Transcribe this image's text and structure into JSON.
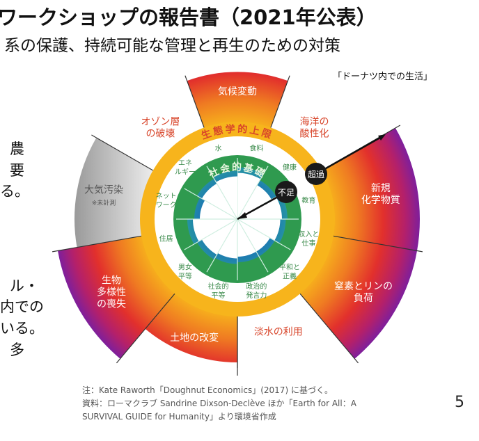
{
  "slide": {
    "title": "ワークショップの報告書（2021年公表）",
    "subtitle": "系の保護、持続可能な管理と再生のための対策",
    "body_fragments": [
      "農",
      "要",
      "る。",
      "ル・",
      "内での",
      "いる。",
      "多"
    ],
    "page_number": "5"
  },
  "diagram": {
    "caption": "「ドーナツ内での生活」",
    "ecological_ceiling_label": "生態学的上限",
    "social_foundation_label": "社会的基礎",
    "overshoot_badge": "超過",
    "shortfall_badge": "不足",
    "planetary_boundaries": [
      {
        "label": [
          "気候変動"
        ],
        "overshoot": 0.55,
        "measured": true
      },
      {
        "label": [
          "海洋の",
          "酸性化"
        ],
        "overshoot": 0,
        "measured": true
      },
      {
        "label": [
          "新規",
          "化学物質"
        ],
        "overshoot": 1.0,
        "measured": true
      },
      {
        "label": [
          "窒素とリンの",
          "負荷"
        ],
        "overshoot": 1.0,
        "measured": true
      },
      {
        "label": [
          "淡水の利用"
        ],
        "overshoot": 0,
        "measured": true
      },
      {
        "label": [
          "土地の改変"
        ],
        "overshoot": 0.5,
        "measured": true
      },
      {
        "label": [
          "生物",
          "多様性",
          "の喪失"
        ],
        "overshoot": 1.0,
        "measured": true
      },
      {
        "label": [
          "大気汚染",
          "※未計測"
        ],
        "overshoot": 0.75,
        "measured": false
      },
      {
        "label": [
          "オゾン層",
          "の破壊"
        ],
        "overshoot": 0,
        "measured": true
      }
    ],
    "social_foundations": [
      {
        "label": [
          "食料"
        ],
        "shortfall": 0.35
      },
      {
        "label": [
          "健康"
        ],
        "shortfall": 0.55
      },
      {
        "label": [
          "教育"
        ],
        "shortfall": 0.4
      },
      {
        "label": [
          "収入と",
          "仕事"
        ],
        "shortfall": 0.45
      },
      {
        "label": [
          "平和と",
          "正義"
        ],
        "shortfall": 0.6
      },
      {
        "label": [
          "政治的",
          "発言力"
        ],
        "shortfall": 0.6
      },
      {
        "label": [
          "社会的",
          "平等"
        ],
        "shortfall": 0.55
      },
      {
        "label": [
          "男女",
          "平等"
        ],
        "shortfall": 0.5
      },
      {
        "label": [
          "住居"
        ],
        "shortfall": 0.4
      },
      {
        "label": [
          "ネット",
          "ワーク"
        ],
        "shortfall": 0.6
      },
      {
        "label": [
          "エネ",
          "ルギー"
        ],
        "shortfall": 0.5
      },
      {
        "label": [
          "水"
        ],
        "shortfall": 0.45
      }
    ],
    "colors": {
      "ring": "#f5ad1a",
      "foundation": "#2f9a4f",
      "overshoot_inner": "#f29a1c",
      "overshoot_mid": "#e5322b",
      "overshoot_outer": "#8a1f9a",
      "ceiling_text": "#d8452a",
      "foundation_text": "#3a8a4a",
      "unmeasured": "#bbbbbb"
    }
  },
  "notes": {
    "line1": "注：Kate Raworth「Doughnut Economics」(2017) に基づく。",
    "line2": "資料：ローマクラブ Sandrine Dixson-Declève ほか「Earth for All：A",
    "line3": "SURVIVAL GUIDE for Humanity」より環境省作成"
  }
}
